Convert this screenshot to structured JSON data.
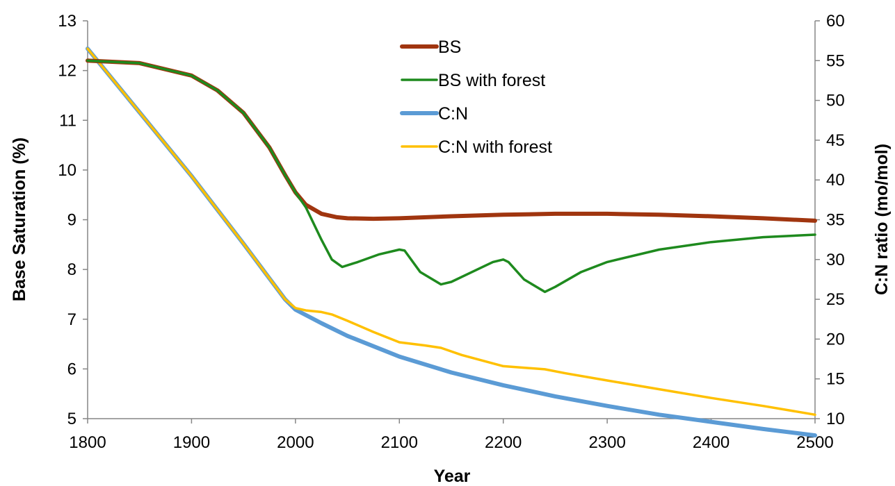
{
  "chart_data": {
    "type": "line",
    "title": "",
    "xlabel": "Year",
    "ylabel": "Base Saturation (%)",
    "y2label": "C:N ratio (mo/mol)",
    "xlim": [
      1800,
      2500
    ],
    "ylim": [
      5,
      13
    ],
    "y2lim": [
      10,
      60
    ],
    "x_ticks": [
      1800,
      1900,
      2000,
      2100,
      2200,
      2300,
      2400,
      2500
    ],
    "y_ticks": [
      5,
      6,
      7,
      8,
      9,
      10,
      11,
      12,
      13
    ],
    "y2_ticks": [
      10,
      15,
      20,
      25,
      30,
      35,
      40,
      45,
      50,
      55,
      60
    ],
    "grid": false,
    "legend_position": "top-center",
    "series": [
      {
        "name": "BS",
        "axis": "left",
        "color": "#a0350f",
        "x": [
          1800,
          1850,
          1900,
          1925,
          1950,
          1975,
          1990,
          2000,
          2010,
          2025,
          2040,
          2050,
          2075,
          2100,
          2150,
          2200,
          2250,
          2300,
          2350,
          2400,
          2450,
          2500
        ],
        "y": [
          12.2,
          12.15,
          11.9,
          11.6,
          11.15,
          10.45,
          9.9,
          9.55,
          9.3,
          9.12,
          9.05,
          9.03,
          9.02,
          9.03,
          9.07,
          9.1,
          9.12,
          9.12,
          9.1,
          9.07,
          9.03,
          8.98
        ]
      },
      {
        "name": "BS with forest",
        "axis": "left",
        "color": "#1e8a1e",
        "x": [
          1800,
          1850,
          1900,
          1925,
          1950,
          1975,
          1990,
          2000,
          2010,
          2025,
          2035,
          2045,
          2060,
          2080,
          2100,
          2105,
          2120,
          2140,
          2150,
          2170,
          2190,
          2200,
          2205,
          2220,
          2240,
          2250,
          2275,
          2300,
          2350,
          2400,
          2450,
          2500
        ],
        "y": [
          12.2,
          12.15,
          11.9,
          11.6,
          11.15,
          10.45,
          9.9,
          9.55,
          9.25,
          8.6,
          8.2,
          8.05,
          8.15,
          8.3,
          8.4,
          8.38,
          7.95,
          7.7,
          7.75,
          7.95,
          8.15,
          8.2,
          8.15,
          7.8,
          7.55,
          7.65,
          7.95,
          8.15,
          8.4,
          8.55,
          8.65,
          8.7
        ]
      },
      {
        "name": "C:N",
        "axis": "right",
        "color": "#5b9bd5",
        "x": [
          1800,
          1850,
          1900,
          1950,
          1990,
          2000,
          2025,
          2050,
          2100,
          2150,
          2200,
          2250,
          2300,
          2350,
          2400,
          2450,
          2500
        ],
        "y": [
          56.5,
          48.5,
          40.5,
          32.0,
          25.0,
          23.7,
          22.0,
          20.4,
          17.8,
          15.8,
          14.2,
          12.8,
          11.6,
          10.5,
          9.6,
          8.7,
          7.9
        ]
      },
      {
        "name": "C:N with forest",
        "axis": "right",
        "color": "#ffc000",
        "x": [
          1800,
          1850,
          1900,
          1950,
          1990,
          2000,
          2010,
          2025,
          2035,
          2050,
          2075,
          2100,
          2125,
          2140,
          2160,
          2200,
          2240,
          2260,
          2300,
          2350,
          2400,
          2450,
          2500
        ],
        "y": [
          56.5,
          48.5,
          40.5,
          32.0,
          25.0,
          23.9,
          23.6,
          23.4,
          23.1,
          22.3,
          20.9,
          19.6,
          19.2,
          18.9,
          18.0,
          16.6,
          16.2,
          15.7,
          14.8,
          13.7,
          12.6,
          11.6,
          10.5
        ]
      }
    ]
  }
}
